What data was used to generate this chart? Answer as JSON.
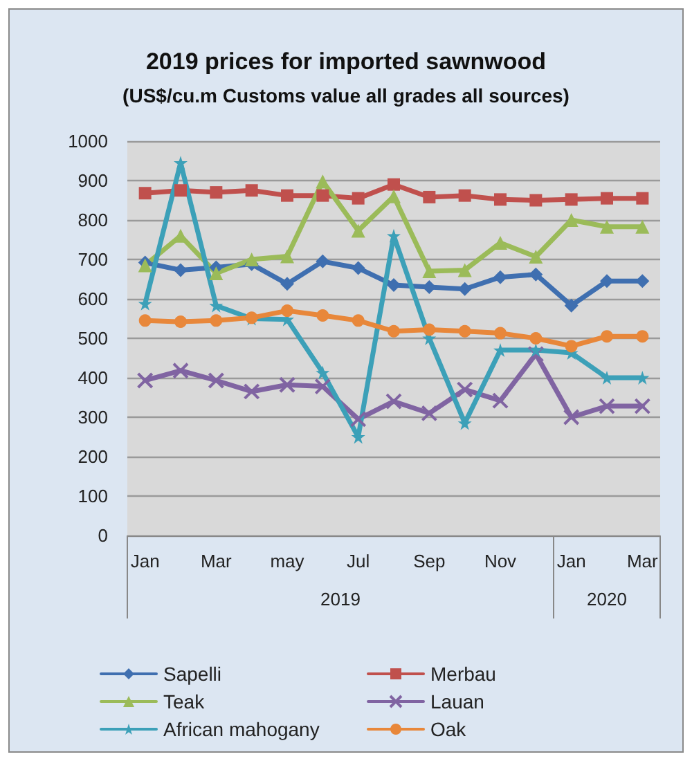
{
  "chart_data": {
    "type": "line",
    "title": "2019 prices for imported sawnwood",
    "subtitle": "(US$/cu.m Customs value all grades all sources)",
    "categories": [
      "Jan",
      null,
      "Mar",
      null,
      "may",
      null,
      "Jul",
      null,
      "Sep",
      null,
      "Nov",
      null,
      "Jan",
      null,
      "Mar"
    ],
    "annotations": [
      "2019",
      "2020"
    ],
    "ylim": [
      0,
      1000
    ],
    "yticks": [
      0,
      100,
      200,
      300,
      400,
      500,
      600,
      700,
      800,
      900,
      1000
    ],
    "grid": "y",
    "legend": "bottom",
    "series": [
      {
        "name": "Sapelli",
        "color": "#3f6fb0",
        "marker": "diamond",
        "values": [
          692,
          673,
          680,
          688,
          638,
          695,
          678,
          635,
          630,
          625,
          655,
          662,
          583,
          645,
          645
        ]
      },
      {
        "name": "Merbau",
        "color": "#c0504d",
        "marker": "square",
        "values": [
          868,
          875,
          870,
          875,
          862,
          862,
          855,
          890,
          858,
          862,
          852,
          850,
          852,
          855,
          855
        ]
      },
      {
        "name": "Teak",
        "color": "#9bbb59",
        "marker": "triangle",
        "values": [
          685,
          760,
          665,
          700,
          708,
          898,
          773,
          860,
          670,
          673,
          742,
          707,
          800,
          783,
          783
        ]
      },
      {
        "name": "Lauan",
        "color": "#8064a2",
        "marker": "cross",
        "values": [
          393,
          418,
          393,
          365,
          382,
          378,
          295,
          340,
          310,
          370,
          342,
          460,
          300,
          328,
          328
        ]
      },
      {
        "name": "African mahogany",
        "color": "#3ca0b8",
        "marker": "star",
        "values": [
          588,
          945,
          583,
          550,
          548,
          413,
          250,
          760,
          500,
          285,
          470,
          470,
          463,
          400,
          400
        ]
      },
      {
        "name": "Oak",
        "color": "#e8873a",
        "marker": "circle",
        "values": [
          545,
          542,
          545,
          552,
          570,
          558,
          545,
          518,
          522,
          518,
          513,
          500,
          480,
          505,
          505
        ]
      }
    ]
  }
}
